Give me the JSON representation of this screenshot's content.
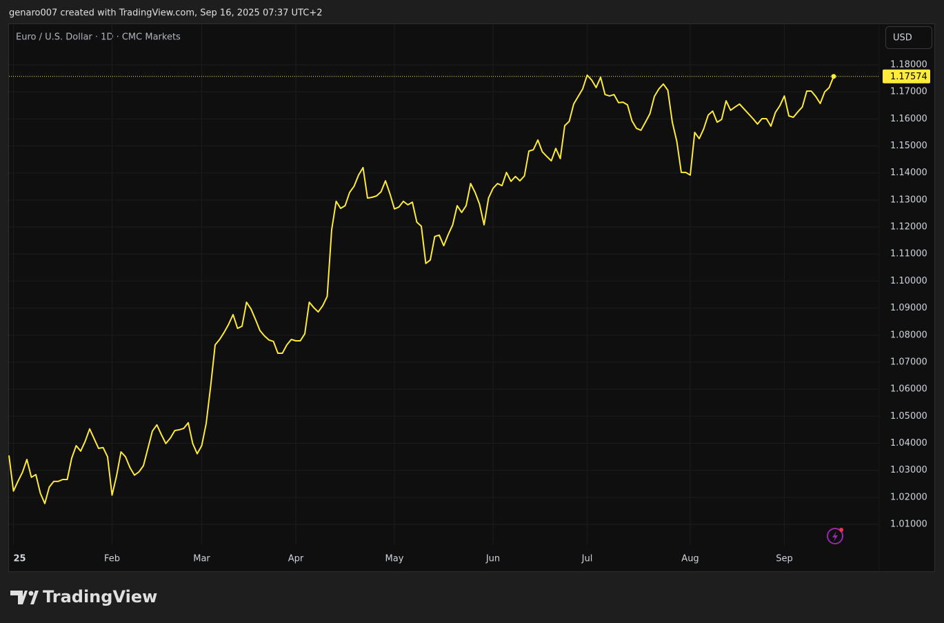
{
  "header": "genaro007 created with TradingView.com, Sep 16, 2025 07:37 UTC+2",
  "currency": "USD",
  "brand": "TradingView",
  "chart_data": {
    "type": "line",
    "title": "Euro / U.S. Dollar · 1D · CMC Markets",
    "color": "#ffeb3b",
    "grid": true,
    "values": [
      1.0355,
      1.0223,
      1.0259,
      1.0292,
      1.034,
      1.0274,
      1.0284,
      1.0215,
      1.0177,
      1.0238,
      1.0259,
      1.0259,
      1.0266,
      1.0266,
      1.0345,
      1.0391,
      1.0371,
      1.0407,
      1.0453,
      1.0417,
      1.0381,
      1.0384,
      1.035,
      1.0208,
      1.0279,
      1.0368,
      1.035,
      1.031,
      1.0282,
      1.0294,
      1.0317,
      1.0381,
      1.0445,
      1.0468,
      1.0432,
      1.0399,
      1.0419,
      1.0447,
      1.045,
      1.0455,
      1.0476,
      1.0399,
      1.0361,
      1.0391,
      1.0473,
      1.0611,
      1.0764,
      1.0784,
      1.081,
      1.084,
      1.0876,
      1.0825,
      1.0833,
      1.0922,
      1.0897,
      1.0858,
      1.0817,
      1.0797,
      1.0782,
      1.0777,
      1.0733,
      1.0733,
      1.0764,
      1.0784,
      1.0779,
      1.0779,
      1.0805,
      1.0922,
      1.0902,
      1.0886,
      1.0909,
      1.0943,
      1.119,
      1.1295,
      1.1269,
      1.1279,
      1.1328,
      1.1351,
      1.1392,
      1.142,
      1.1307,
      1.131,
      1.1315,
      1.133,
      1.1371,
      1.1323,
      1.1267,
      1.1274,
      1.1295,
      1.1282,
      1.1292,
      1.1218,
      1.1203,
      1.1065,
      1.1078,
      1.1165,
      1.117,
      1.1131,
      1.1172,
      1.1208,
      1.1279,
      1.1254,
      1.1279,
      1.1361,
      1.1328,
      1.1284,
      1.1208,
      1.1307,
      1.1343,
      1.1361,
      1.1353,
      1.1402,
      1.1369,
      1.1387,
      1.1371,
      1.1389,
      1.1481,
      1.1486,
      1.1522,
      1.1478,
      1.1461,
      1.1445,
      1.1491,
      1.1453,
      1.1575,
      1.1591,
      1.1655,
      1.1683,
      1.1711,
      1.1762,
      1.1744,
      1.1716,
      1.1754,
      1.169,
      1.1685,
      1.169,
      1.166,
      1.1662,
      1.1652,
      1.1593,
      1.1565,
      1.1558,
      1.1588,
      1.1619,
      1.1683,
      1.1711,
      1.1729,
      1.1706,
      1.1588,
      1.1517,
      1.1402,
      1.1402,
      1.1392,
      1.155,
      1.1527,
      1.1563,
      1.1614,
      1.1629,
      1.1588,
      1.1598,
      1.1667,
      1.1632,
      1.1644,
      1.1655,
      1.1637,
      1.1619,
      1.1601,
      1.1581,
      1.1601,
      1.1601,
      1.1573,
      1.1624,
      1.1649,
      1.1685,
      1.1611,
      1.1606,
      1.1626,
      1.1644,
      1.1703,
      1.1703,
      1.1683,
      1.1657,
      1.17,
      1.1716,
      1.17574
    ],
    "xlim": [
      0,
      194
    ],
    "xticks": [
      {
        "value": 1,
        "label": "25"
      },
      {
        "value": 23,
        "label": "Feb"
      },
      {
        "value": 43,
        "label": "Mar"
      },
      {
        "value": 64,
        "label": "Apr"
      },
      {
        "value": 86,
        "label": "May"
      },
      {
        "value": 108,
        "label": "Jun"
      },
      {
        "value": 129,
        "label": "Jul"
      },
      {
        "value": 152,
        "label": "Aug"
      },
      {
        "value": 173,
        "label": "Sep"
      }
    ],
    "ylim": [
      1.00234,
      1.19506
    ],
    "yticks": [
      {
        "value": 1.01,
        "label": "1.01000"
      },
      {
        "value": 1.02,
        "label": "1.02000"
      },
      {
        "value": 1.03,
        "label": "1.03000"
      },
      {
        "value": 1.04,
        "label": "1.04000"
      },
      {
        "value": 1.05,
        "label": "1.05000"
      },
      {
        "value": 1.06,
        "label": "1.06000"
      },
      {
        "value": 1.07,
        "label": "1.07000"
      },
      {
        "value": 1.08,
        "label": "1.08000"
      },
      {
        "value": 1.09,
        "label": "1.09000"
      },
      {
        "value": 1.1,
        "label": "1.10000"
      },
      {
        "value": 1.11,
        "label": "1.11000"
      },
      {
        "value": 1.12,
        "label": "1.12000"
      },
      {
        "value": 1.13,
        "label": "1.13000"
      },
      {
        "value": 1.14,
        "label": "1.14000"
      },
      {
        "value": 1.15,
        "label": "1.15000"
      },
      {
        "value": 1.16,
        "label": "1.16000"
      },
      {
        "value": 1.17,
        "label": "1.17000"
      },
      {
        "value": 1.18,
        "label": "1.18000"
      }
    ]
  }
}
